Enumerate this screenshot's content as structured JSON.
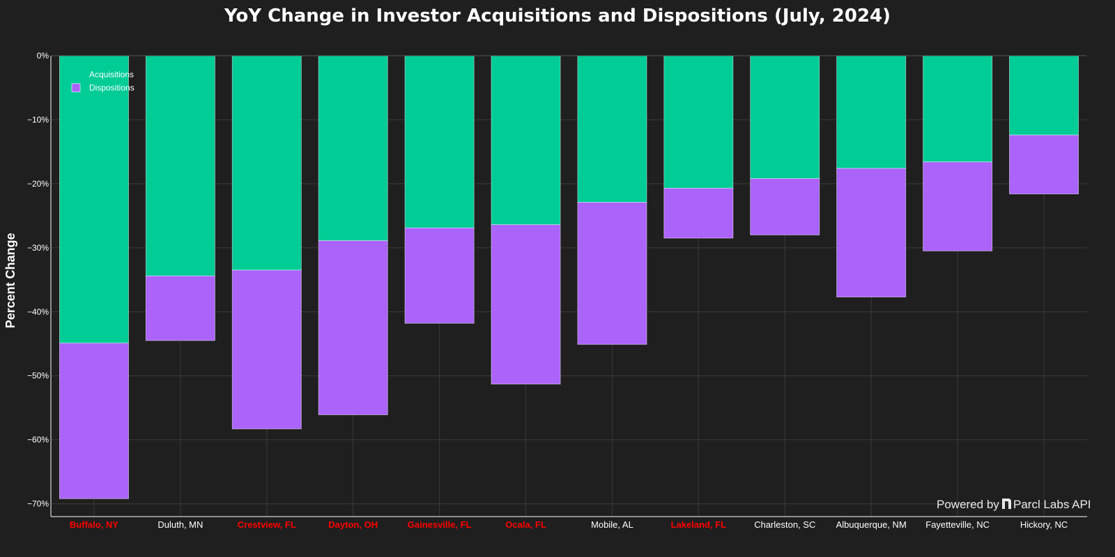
{
  "chart_data": {
    "type": "bar",
    "stacked": true,
    "title": "YoY Change in Investor Acquisitions and Dispositions (July, 2024)",
    "xlabel": "",
    "ylabel": "Percent Change",
    "ylim": [
      -72,
      0
    ],
    "yticks": [
      0,
      -10,
      -20,
      -30,
      -40,
      -50,
      -60,
      -70
    ],
    "ytick_labels": [
      "0%",
      "−10%",
      "−20%",
      "−30%",
      "−40%",
      "−50%",
      "−60%",
      "−70%"
    ],
    "grid": true,
    "legend_position": "top-left",
    "categories": [
      "Buffalo, NY",
      "Duluth, MN",
      "Crestview, FL",
      "Dayton, OH",
      "Gainesville, FL",
      "Ocala, FL",
      "Mobile, AL",
      "Lakeland, FL",
      "Charleston, SC",
      "Albuquerque, NM",
      "Fayetteville, NC",
      "Hickory, NC"
    ],
    "highlighted_categories": [
      "Buffalo, NY",
      "Crestview, FL",
      "Dayton, OH",
      "Gainesville, FL",
      "Ocala, FL",
      "Lakeland, FL"
    ],
    "series": [
      {
        "name": "Acquisitions",
        "color": "#00cc96",
        "values": [
          -44.9,
          -34.4,
          -33.5,
          -28.9,
          -26.9,
          -26.4,
          -22.9,
          -20.7,
          -19.2,
          -17.6,
          -16.6,
          -12.4
        ]
      },
      {
        "name": "Dispositions",
        "color": "#ab63fa",
        "values": [
          -24.3,
          -10.1,
          -24.8,
          -27.2,
          -14.9,
          -24.9,
          -22.2,
          -7.8,
          -8.8,
          -20.1,
          -13.9,
          -9.2
        ]
      }
    ]
  },
  "colors": {
    "background": "#1f1f1f",
    "highlight_label": "#ff0000",
    "normal_label": "#ffffff",
    "grid": "#3a3a3a"
  },
  "watermark": {
    "prefix": "Powered by",
    "brand": "Parcl Labs API"
  }
}
